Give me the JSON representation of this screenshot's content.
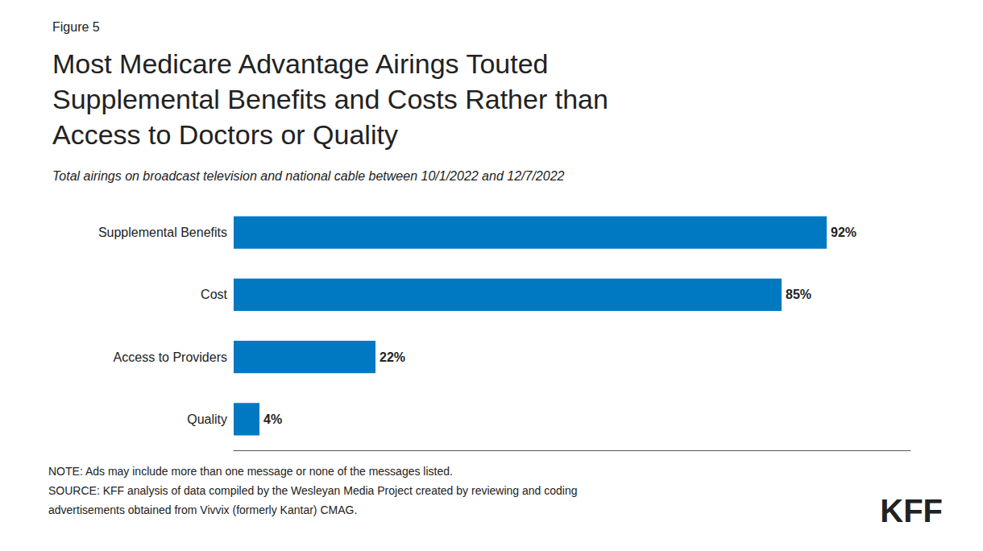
{
  "chart_data": {
    "type": "bar",
    "orientation": "horizontal",
    "title": "Most Medicare Advantage Airings Touted\nSupplemental Benefits and Costs Rather than\nAccess to Doctors or Quality",
    "subtitle": "Total airings on broadcast television and national cable between 10/1/2022 and 12/7/2022",
    "annotations": [
      "Figure 5",
      "NOTE: Ads may include more than one message or none of the messages listed.",
      "SOURCE: KFF analysis of data compiled by the Wesleyan Media Project created by reviewing and coding",
      "advertisements obtained from Vivvix (formerly Kantar) CMAG.",
      "KFF"
    ],
    "categories": [
      "Supplemental Benefits",
      "Cost",
      "Access to Providers",
      "Quality"
    ],
    "values": [
      92,
      85,
      22,
      4
    ],
    "value_labels": [
      "92%",
      "85%",
      "22%",
      "4%"
    ],
    "data_labels": true,
    "color": "#0079c2",
    "xlim": [
      0,
      105
    ],
    "grid": false,
    "tick_labels": "y"
  }
}
